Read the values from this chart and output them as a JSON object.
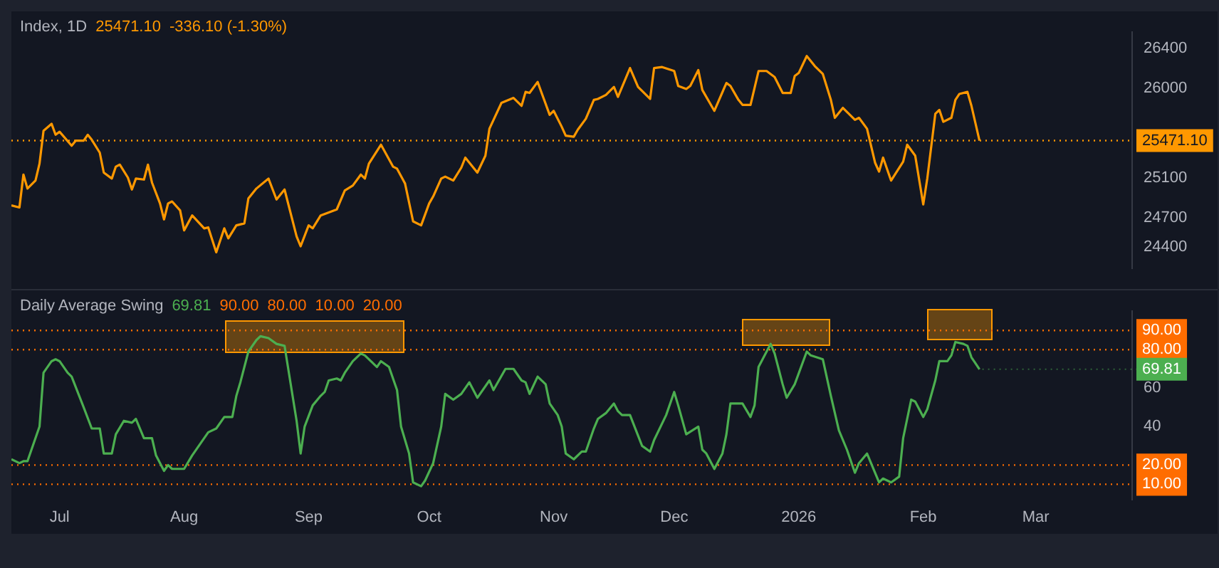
{
  "chart_data": [
    {
      "type": "line",
      "title": "Index, 1D",
      "annotations": [
        "25471.10",
        "-336.10 (-1.30%)"
      ],
      "tick_labels": "y",
      "legend": false,
      "grid": false,
      "marker": "none",
      "xlim": [
        "2025-06-19",
        "2026-03-25"
      ],
      "ylim": [
        24190,
        26560
      ],
      "yticks": [
        24400,
        24700,
        25100,
        26000,
        26400
      ],
      "ref_lines": [
        {
          "axis": "y",
          "value": 25471.1,
          "label": "25471.10",
          "color": "#ff9800",
          "line_style": "dotted"
        }
      ],
      "series": [
        {
          "color": "#ff9800",
          "x": [
            "2025-06-19",
            "2025-06-21",
            "2025-06-22",
            "2025-06-23",
            "2025-06-25",
            "2025-06-26",
            "2025-06-27",
            "2025-06-29",
            "2025-06-30",
            "2025-07-01",
            "2025-07-04",
            "2025-07-05",
            "2025-07-07",
            "2025-07-08",
            "2025-07-09",
            "2025-07-11",
            "2025-07-12",
            "2025-07-14",
            "2025-07-15",
            "2025-07-16",
            "2025-07-18",
            "2025-07-19",
            "2025-07-20",
            "2025-07-22",
            "2025-07-23",
            "2025-07-24",
            "2025-07-26",
            "2025-07-27",
            "2025-07-28",
            "2025-07-29",
            "2025-07-31",
            "2025-08-01",
            "2025-08-03",
            "2025-08-06",
            "2025-08-07",
            "2025-08-09",
            "2025-08-11",
            "2025-08-12",
            "2025-08-14",
            "2025-08-16",
            "2025-08-17",
            "2025-08-19",
            "2025-08-22",
            "2025-08-24",
            "2025-08-26",
            "2025-08-29",
            "2025-08-30",
            "2025-09-01",
            "2025-09-02",
            "2025-09-04",
            "2025-09-06",
            "2025-09-08",
            "2025-09-10",
            "2025-09-12",
            "2025-09-14",
            "2025-09-15",
            "2025-09-16",
            "2025-09-19",
            "2025-09-22",
            "2025-09-23",
            "2025-09-25",
            "2025-09-27",
            "2025-09-29",
            "2025-10-01",
            "2025-10-02",
            "2025-10-04",
            "2025-10-05",
            "2025-10-07",
            "2025-10-09",
            "2025-10-10",
            "2025-10-13",
            "2025-10-15",
            "2025-10-16",
            "2025-10-19",
            "2025-10-22",
            "2025-10-24",
            "2025-10-25",
            "2025-10-26",
            "2025-10-28",
            "2025-10-31",
            "2025-11-01",
            "2025-11-03",
            "2025-11-04",
            "2025-11-06",
            "2025-11-07",
            "2025-11-09",
            "2025-11-11",
            "2025-11-12",
            "2025-11-14",
            "2025-11-16",
            "2025-11-17",
            "2025-11-20",
            "2025-11-22",
            "2025-11-25",
            "2025-11-26",
            "2025-11-28",
            "2025-12-01",
            "2025-12-02",
            "2025-12-04",
            "2025-12-05",
            "2025-12-07",
            "2025-12-08",
            "2025-12-11",
            "2025-12-14",
            "2025-12-15",
            "2025-12-17",
            "2025-12-18",
            "2025-12-20",
            "2025-12-22",
            "2025-12-24",
            "2025-12-26",
            "2025-12-28",
            "2025-12-30",
            "2025-12-31",
            "2026-01-01",
            "2026-01-03",
            "2026-01-05",
            "2026-01-07",
            "2026-01-09",
            "2026-01-10",
            "2026-01-12",
            "2026-01-15",
            "2026-01-16",
            "2026-01-18",
            "2026-01-20",
            "2026-01-21",
            "2026-01-22",
            "2026-01-24",
            "2026-01-27",
            "2026-01-28",
            "2026-01-30",
            "2026-02-01",
            "2026-02-02",
            "2026-02-04",
            "2026-02-05",
            "2026-02-06",
            "2026-02-08",
            "2026-02-09",
            "2026-02-10",
            "2026-02-12",
            "2026-02-13",
            "2026-02-15"
          ],
          "values": [
            24820,
            24800,
            25130,
            24990,
            25070,
            25240,
            25570,
            25640,
            25530,
            25560,
            25420,
            25470,
            25470,
            25530,
            25480,
            25350,
            25150,
            25090,
            25210,
            25230,
            25100,
            24980,
            25090,
            25080,
            25230,
            25050,
            24840,
            24680,
            24840,
            24860,
            24770,
            24570,
            24720,
            24590,
            24600,
            24350,
            24590,
            24490,
            24620,
            24640,
            24890,
            24990,
            25090,
            24880,
            24980,
            24510,
            24410,
            24620,
            24590,
            24720,
            24750,
            24780,
            24970,
            25020,
            25130,
            25090,
            25240,
            25430,
            25210,
            25190,
            25040,
            24660,
            24620,
            24840,
            24910,
            25090,
            25110,
            25070,
            25200,
            25300,
            25150,
            25320,
            25590,
            25850,
            25900,
            25820,
            25960,
            25950,
            26060,
            25730,
            25770,
            25610,
            25520,
            25510,
            25580,
            25690,
            25880,
            25890,
            25930,
            26010,
            25910,
            26200,
            26010,
            25890,
            26200,
            26210,
            26170,
            26020,
            25990,
            26020,
            26180,
            25980,
            25770,
            26050,
            26020,
            25880,
            25830,
            25830,
            26170,
            26170,
            26110,
            25950,
            25950,
            26120,
            26150,
            26320,
            26220,
            26140,
            25880,
            25700,
            25800,
            25680,
            25700,
            25590,
            25250,
            25160,
            25300,
            25070,
            25260,
            25430,
            25320,
            24830,
            25090,
            25740,
            25780,
            25660,
            25700,
            25880,
            25940,
            25960,
            25820,
            25471.1
          ]
        }
      ]
    },
    {
      "type": "line",
      "title": "Daily Average Swing",
      "annotations": [
        "69.81",
        "90.00",
        "80.00",
        "10.00",
        "20.00",
        {
          "text": "69.81",
          "x": "2026-02-15",
          "y": 69.81
        }
      ],
      "legend": false,
      "grid": false,
      "marker": "none",
      "xlim": [
        "2025-06-19",
        "2026-03-25"
      ],
      "xticks": [
        {
          "value": "2025-07-01",
          "label": "Jul"
        },
        {
          "value": "2025-08-01",
          "label": "Aug"
        },
        {
          "value": "2025-09-01",
          "label": "Sep"
        },
        {
          "value": "2025-10-01",
          "label": "Oct"
        },
        {
          "value": "2025-11-01",
          "label": "Nov"
        },
        {
          "value": "2025-12-01",
          "label": "Dec"
        },
        {
          "value": "2026-01-01",
          "label": "2026"
        },
        {
          "value": "2026-02-01",
          "label": "Feb"
        },
        {
          "value": "2026-03-01",
          "label": "Mar"
        }
      ],
      "ylim": [
        2,
        100
      ],
      "yticks": [
        40,
        60
      ],
      "ref_lines": [
        {
          "axis": "y",
          "value": 90,
          "label": "90.00",
          "color": "#ff6d00",
          "line_style": "dotted"
        },
        {
          "axis": "y",
          "value": 80,
          "label": "80.00",
          "color": "#ff6d00",
          "line_style": "dotted"
        },
        {
          "axis": "y",
          "value": 10,
          "label": "10.00",
          "color": "#ff6d00",
          "line_style": "dotted"
        },
        {
          "axis": "y",
          "value": 20,
          "label": "20.00",
          "color": "#ff6d00",
          "line_style": "dotted"
        }
      ],
      "series": [
        {
          "color": "#4caf50",
          "x": [
            "2025-06-19",
            "2025-06-21",
            "2025-06-22",
            "2025-06-23",
            "2025-06-24",
            "2025-06-26",
            "2025-06-27",
            "2025-06-29",
            "2025-06-30",
            "2025-07-01",
            "2025-07-03",
            "2025-07-04",
            "2025-07-07",
            "2025-07-09",
            "2025-07-11",
            "2025-07-12",
            "2025-07-14",
            "2025-07-15",
            "2025-07-17",
            "2025-07-19",
            "2025-07-20",
            "2025-07-22",
            "2025-07-24",
            "2025-07-25",
            "2025-07-27",
            "2025-07-28",
            "2025-07-29",
            "2025-08-01",
            "2025-08-03",
            "2025-08-05",
            "2025-08-07",
            "2025-08-09",
            "2025-08-11",
            "2025-08-13",
            "2025-08-14",
            "2025-08-15",
            "2025-08-17",
            "2025-08-19",
            "2025-08-20",
            "2025-08-22",
            "2025-08-24",
            "2025-08-26",
            "2025-08-27",
            "2025-08-29",
            "2025-08-30",
            "2025-08-31",
            "2025-09-02",
            "2025-09-04",
            "2025-09-05",
            "2025-09-06",
            "2025-09-08",
            "2025-09-09",
            "2025-09-10",
            "2025-09-12",
            "2025-09-14",
            "2025-09-15",
            "2025-09-18",
            "2025-09-19",
            "2025-09-21",
            "2025-09-23",
            "2025-09-24",
            "2025-09-26",
            "2025-09-27",
            "2025-09-29",
            "2025-09-30",
            "2025-10-02",
            "2025-10-04",
            "2025-10-05",
            "2025-10-07",
            "2025-10-09",
            "2025-10-11",
            "2025-10-13",
            "2025-10-16",
            "2025-10-17",
            "2025-10-20",
            "2025-10-22",
            "2025-10-24",
            "2025-10-25",
            "2025-10-26",
            "2025-10-28",
            "2025-10-30",
            "2025-10-31",
            "2025-11-02",
            "2025-11-03",
            "2025-11-04",
            "2025-11-06",
            "2025-11-08",
            "2025-11-09",
            "2025-11-11",
            "2025-11-12",
            "2025-11-14",
            "2025-11-16",
            "2025-11-17",
            "2025-11-18",
            "2025-11-20",
            "2025-11-23",
            "2025-11-25",
            "2025-11-26",
            "2025-11-29",
            "2025-12-01",
            "2025-12-02",
            "2025-12-04",
            "2025-12-07",
            "2025-12-08",
            "2025-12-09",
            "2025-12-11",
            "2025-12-13",
            "2025-12-14",
            "2025-12-15",
            "2025-12-18",
            "2025-12-20",
            "2025-12-21",
            "2025-12-22",
            "2025-12-25",
            "2025-12-26",
            "2025-12-28",
            "2025-12-29",
            "2025-12-31",
            "2026-01-03",
            "2026-01-04",
            "2026-01-07",
            "2026-01-09",
            "2026-01-11",
            "2026-01-13",
            "2026-01-15",
            "2026-01-16",
            "2026-01-18",
            "2026-01-20",
            "2026-01-21",
            "2026-01-22",
            "2026-01-24",
            "2026-01-26",
            "2026-01-27",
            "2026-01-29",
            "2026-01-30",
            "2026-02-01",
            "2026-02-02",
            "2026-02-04",
            "2026-02-05",
            "2026-02-07",
            "2026-02-08",
            "2026-02-09",
            "2026-02-11",
            "2026-02-12",
            "2026-02-13",
            "2026-02-15"
          ],
          "values": [
            23,
            21,
            22,
            22,
            28,
            40,
            68,
            74,
            75,
            74,
            68,
            66,
            50,
            39,
            39,
            26,
            26,
            36,
            43,
            42,
            44,
            34,
            34,
            25,
            17,
            20,
            18,
            18,
            25,
            31,
            37,
            39,
            45,
            45,
            56,
            63,
            79,
            85,
            87,
            86,
            83,
            82,
            69,
            43,
            26,
            40,
            51,
            56,
            58,
            64,
            65,
            64,
            68,
            74,
            78,
            77,
            71,
            74,
            71,
            59,
            40,
            26,
            11,
            9,
            12,
            21,
            40,
            57,
            54,
            57,
            63,
            55,
            64,
            59,
            70,
            70,
            64,
            63,
            57,
            66,
            62,
            52,
            46,
            40,
            26,
            23,
            27,
            27,
            39,
            44,
            47,
            52,
            48,
            46,
            46,
            30,
            27,
            33,
            46,
            58,
            51,
            36,
            40,
            28,
            26,
            18,
            26,
            36,
            52,
            52,
            45,
            51,
            71,
            83,
            78,
            62,
            55,
            62,
            79,
            77,
            75,
            56,
            38,
            28,
            16,
            21,
            26,
            16,
            11,
            13,
            11,
            14,
            34,
            54,
            53,
            45,
            49,
            64,
            74,
            74,
            77,
            84,
            83,
            82,
            76,
            69.81
          ]
        }
      ]
    }
  ]
}
